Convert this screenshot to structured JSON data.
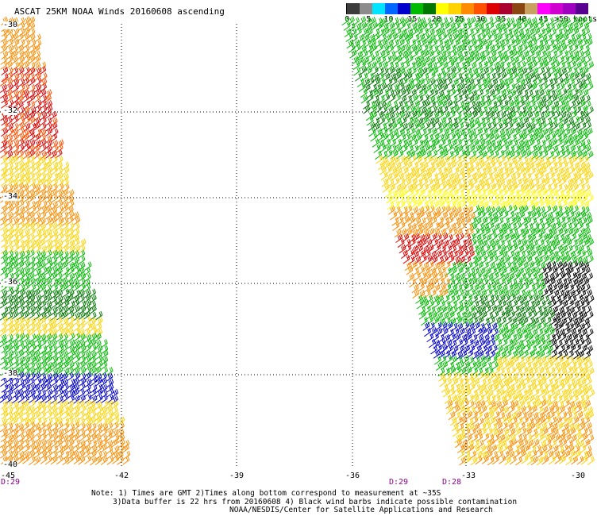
{
  "title": "ASCAT 25KM NOAA Winds 20160608 ascending",
  "legend": {
    "labels": [
      "0",
      "5",
      "10",
      "15",
      "20",
      "25",
      "30",
      "35",
      "40",
      "45",
      ">50 knots"
    ],
    "colors": [
      "#3c3c3c",
      "#8c8c8c",
      "#00e5ff",
      "#0066ff",
      "#0000cc",
      "#00bb00",
      "#007700",
      "#ffff00",
      "#ffd200",
      "#ff8c00",
      "#ff5000",
      "#dd0000",
      "#aa0030",
      "#8b4513",
      "#c8a060",
      "#ff00ff",
      "#d000d0",
      "#a000c0",
      "#5a0090"
    ]
  },
  "map": {
    "lon_labels": [
      "-45",
      "-42",
      "-39",
      "-36",
      "-33",
      "-30"
    ],
    "lat_labels": [
      "-30",
      "-32",
      "-34",
      "-36",
      "-38",
      "-40"
    ],
    "lon_range": [
      -45,
      -30
    ],
    "lat_range": [
      -30,
      -40
    ],
    "swath_day_labels": [
      "D:29",
      "D:29",
      "D:28"
    ]
  },
  "notes": [
    "Note: 1) Times are GMT 2)Times along bottom correspond to measurement at ~35S",
    "3)Data buffer is 22 hrs from 20160608 4) Black wind barbs indicate possible contamination",
    "NOAA/NESDIS/Center for Satellite Applications and Research"
  ]
}
